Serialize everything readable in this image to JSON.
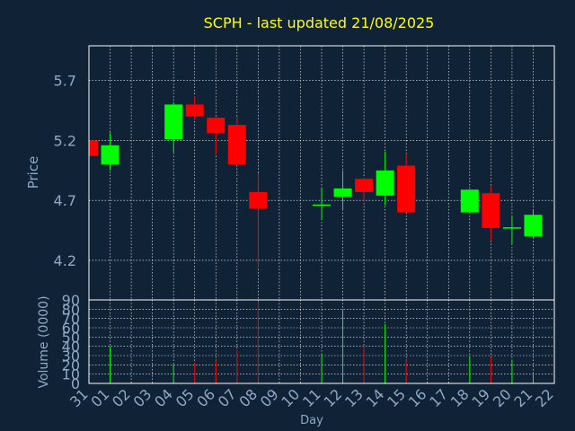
{
  "chart_data": {
    "type": "candlestick",
    "title": "SCPH - last updated 21/08/2025",
    "xlabel": "Day",
    "ylabel": "Price",
    "volume_label": "Volume (0000)",
    "grid": true,
    "colors": {
      "background": "#0f2236",
      "up": "#00ff00",
      "down": "#ff0000",
      "grid": "#ffffff",
      "title": "#ffff00",
      "axis_text": "#8fa8c4"
    },
    "x_ticks": [
      "31",
      "01",
      "02",
      "03",
      "04",
      "05",
      "06",
      "07",
      "08",
      "09",
      "10",
      "11",
      "12",
      "13",
      "14",
      "15",
      "16",
      "17",
      "18",
      "19",
      "20",
      "21",
      "22"
    ],
    "price_ticks": [
      "4.2",
      "4.7",
      "5.2",
      "5.7"
    ],
    "price_tick_values": [
      4.2,
      4.7,
      5.2,
      5.7
    ],
    "price_range": [
      3.87,
      5.99
    ],
    "volume_ticks": [
      "0",
      "10",
      "20",
      "30",
      "40",
      "50",
      "60",
      "70",
      "80",
      "90"
    ],
    "volume_range": [
      0,
      90
    ],
    "candles": [
      {
        "day": "31",
        "open": 5.2,
        "high": 5.2,
        "low": 5.07,
        "close": 5.07,
        "volume": 0
      },
      {
        "day": "01",
        "open": 5.0,
        "high": 5.27,
        "low": 4.95,
        "close": 5.16,
        "volume": 40
      },
      {
        "day": "04",
        "open": 5.21,
        "high": 5.52,
        "low": 5.1,
        "close": 5.5,
        "volume": 20
      },
      {
        "day": "05",
        "open": 5.5,
        "high": 5.57,
        "low": 5.37,
        "close": 5.4,
        "volume": 22
      },
      {
        "day": "06",
        "open": 5.39,
        "high": 5.4,
        "low": 5.09,
        "close": 5.26,
        "volume": 25
      },
      {
        "day": "07",
        "open": 5.33,
        "high": 5.4,
        "low": 5.0,
        "close": 5.0,
        "volume": 36
      },
      {
        "day": "08",
        "open": 4.77,
        "high": 4.93,
        "low": 4.14,
        "close": 4.63,
        "volume": 88
      },
      {
        "day": "11",
        "open": 4.66,
        "high": 4.8,
        "low": 4.54,
        "close": 4.66,
        "volume": 32
      },
      {
        "day": "12",
        "open": 4.73,
        "high": 4.95,
        "low": 4.62,
        "close": 4.8,
        "volume": 80
      },
      {
        "day": "13",
        "open": 4.88,
        "high": 4.89,
        "low": 4.69,
        "close": 4.77,
        "volume": 40
      },
      {
        "day": "14",
        "open": 4.74,
        "high": 5.11,
        "low": 4.66,
        "close": 4.95,
        "volume": 64
      },
      {
        "day": "15",
        "open": 4.99,
        "high": 5.09,
        "low": 4.6,
        "close": 4.6,
        "volume": 25
      },
      {
        "day": "18",
        "open": 4.6,
        "high": 4.79,
        "low": 4.59,
        "close": 4.79,
        "volume": 28
      },
      {
        "day": "19",
        "open": 4.76,
        "high": 4.82,
        "low": 4.37,
        "close": 4.47,
        "volume": 28
      },
      {
        "day": "20",
        "open": 4.47,
        "high": 4.57,
        "low": 4.34,
        "close": 4.47,
        "volume": 25
      },
      {
        "day": "21",
        "open": 4.4,
        "high": 4.62,
        "low": 4.39,
        "close": 4.58,
        "volume": 12
      }
    ]
  }
}
